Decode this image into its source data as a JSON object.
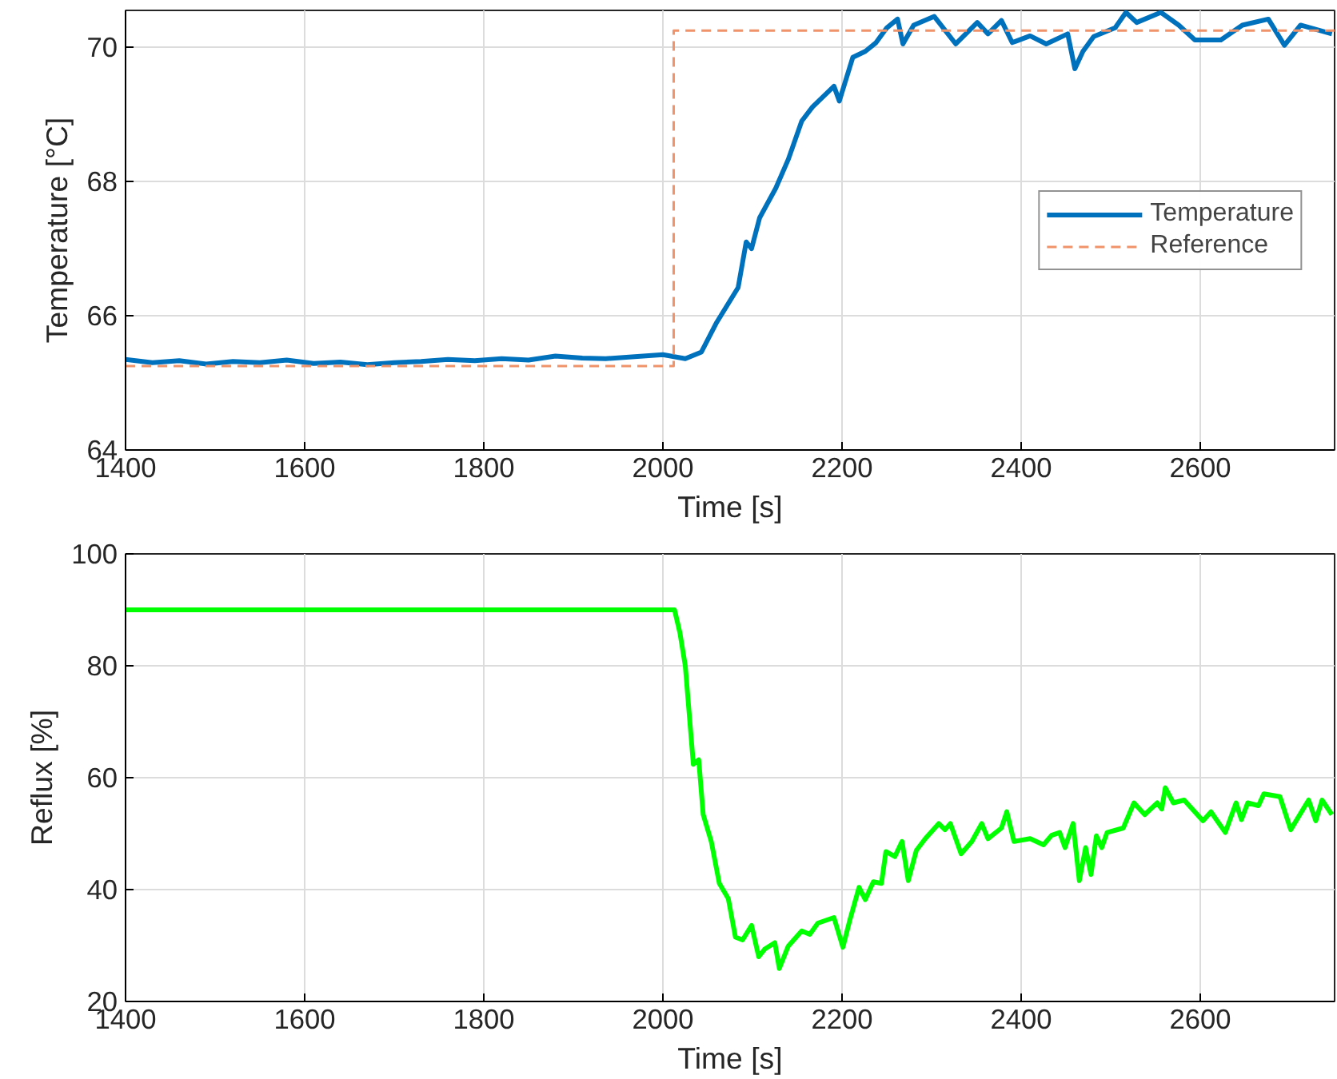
{
  "chart_data": [
    {
      "type": "line",
      "xlabel": "Time [s]",
      "ylabel": "Temperature [°C]",
      "xlim": [
        1400,
        2750
      ],
      "ylim": [
        64,
        70.55
      ],
      "xticks": [
        1400,
        1600,
        1800,
        2000,
        2200,
        2400,
        2600
      ],
      "yticks": [
        64,
        66,
        68,
        70
      ],
      "grid": true,
      "legend": "right",
      "series": [
        {
          "name": "Temperature",
          "color": "#0072bd",
          "line_style": "solid",
          "x": [
            1400,
            1430,
            1460,
            1490,
            1520,
            1550,
            1580,
            1610,
            1640,
            1670,
            1700,
            1730,
            1760,
            1790,
            1820,
            1850,
            1880,
            1910,
            1936,
            2000,
            2025,
            2043,
            2060,
            2084,
            2093,
            2099,
            2108,
            2126,
            2140,
            2155,
            2167,
            2191,
            2197,
            2212,
            2226,
            2238,
            2250,
            2262,
            2268,
            2280,
            2303,
            2327,
            2351,
            2363,
            2378,
            2390,
            2410,
            2428,
            2452,
            2460,
            2469,
            2481,
            2505,
            2517,
            2529,
            2556,
            2576,
            2594,
            2623,
            2647,
            2676,
            2694,
            2712,
            2747
          ],
          "values": [
            65.35,
            65.3,
            65.33,
            65.28,
            65.32,
            65.3,
            65.34,
            65.29,
            65.31,
            65.27,
            65.3,
            65.32,
            65.35,
            65.33,
            65.36,
            65.34,
            65.4,
            65.37,
            65.36,
            65.42,
            65.36,
            65.46,
            65.9,
            66.42,
            67.1,
            67.0,
            67.46,
            67.9,
            68.33,
            68.9,
            69.11,
            69.42,
            69.2,
            69.85,
            69.94,
            70.07,
            70.29,
            70.42,
            70.05,
            70.33,
            70.46,
            70.05,
            70.37,
            70.2,
            70.4,
            70.07,
            70.17,
            70.05,
            70.2,
            69.68,
            69.94,
            70.16,
            70.29,
            70.52,
            70.37,
            70.52,
            70.33,
            70.11,
            70.11,
            70.33,
            70.42,
            70.03,
            70.33,
            70.2
          ]
        },
        {
          "name": "Reference",
          "color": "#f0926a",
          "line_style": "dashed",
          "x": [
            1400,
            2012,
            2012,
            2750
          ],
          "values": [
            65.25,
            65.25,
            70.25,
            70.25
          ]
        }
      ]
    },
    {
      "type": "line",
      "xlabel": "Time [s]",
      "ylabel": "Reflux [%]",
      "xlim": [
        1400,
        2750
      ],
      "ylim": [
        20,
        100
      ],
      "xticks": [
        1400,
        1600,
        1800,
        2000,
        2200,
        2400,
        2600
      ],
      "yticks": [
        20,
        40,
        60,
        80,
        100
      ],
      "grid": true,
      "series": [
        {
          "color": "#00ff00",
          "line_style": "solid",
          "x": [
            1400,
            1936,
            2013,
            2019,
            2025,
            2034,
            2040,
            2045,
            2054,
            2063,
            2073,
            2081,
            2089,
            2099,
            2107,
            2114,
            2125,
            2130,
            2140,
            2155,
            2164,
            2173,
            2191,
            2201,
            2209,
            2219,
            2226,
            2235,
            2244,
            2249,
            2259,
            2267,
            2274,
            2283,
            2293,
            2308,
            2315,
            2321,
            2333,
            2345,
            2356,
            2363,
            2378,
            2384,
            2392,
            2410,
            2425,
            2434,
            2443,
            2449,
            2458,
            2465,
            2472,
            2478,
            2484,
            2490,
            2496,
            2514,
            2526,
            2538,
            2552,
            2557,
            2561,
            2570,
            2582,
            2603,
            2612,
            2628,
            2640,
            2646,
            2653,
            2665,
            2671,
            2689,
            2701,
            2721,
            2729,
            2736,
            2747
          ],
          "values": [
            90,
            90,
            90,
            85.9,
            80,
            62.4,
            63.2,
            53.4,
            48.6,
            41.1,
            38.4,
            31.5,
            31,
            33.6,
            28,
            29.4,
            30.5,
            25.9,
            29.9,
            32.6,
            32,
            34,
            35,
            29.7,
            34.7,
            40.4,
            38.2,
            41.4,
            41.1,
            46.8,
            45.9,
            48.6,
            41.6,
            47,
            49.1,
            51.8,
            50.7,
            51.8,
            46.4,
            48.6,
            51.8,
            49.1,
            51,
            53.9,
            48.6,
            49.1,
            48,
            49.7,
            50.2,
            47.5,
            51.8,
            41.6,
            47.5,
            42.7,
            49.6,
            47.5,
            50.2,
            51,
            55.5,
            53.4,
            55.5,
            54.4,
            58.2,
            55.5,
            56,
            52.3,
            53.9,
            50.2,
            55.5,
            52.5,
            55.5,
            55,
            57.1,
            56.6,
            50.7,
            56,
            52.3,
            56,
            53.4
          ]
        }
      ]
    }
  ]
}
